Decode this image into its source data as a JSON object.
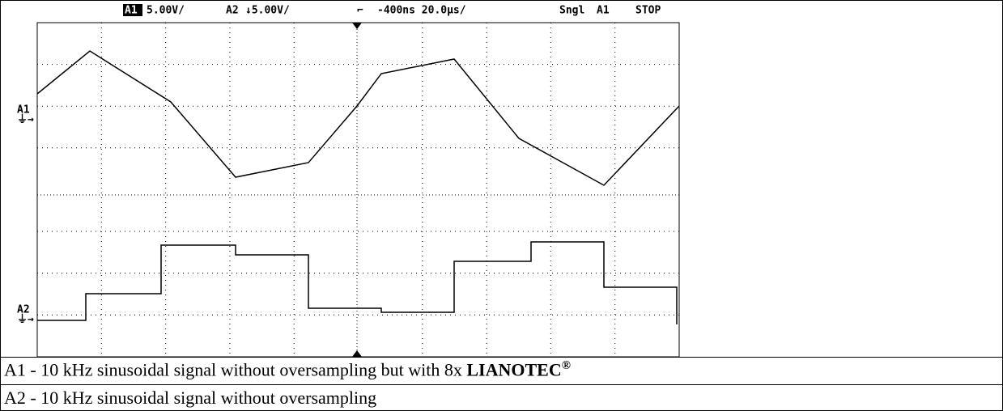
{
  "scope": {
    "header": {
      "ch1": "A1",
      "ch1_scale": "5.00V/",
      "ch2": "A2",
      "ch2_scale": "↓5.00V/",
      "trigger": "-400ns 20.0µs/",
      "mode": "Sngl",
      "trigger_source": "A1",
      "state": "STOP"
    },
    "channel_labels": [
      "A1",
      "A2"
    ]
  },
  "captions": [
    {
      "text": "A1 - 10 kHz sinusoidal signal without oversampling but with 8x ",
      "brand": "LIANOTEC",
      "mark": "®"
    },
    {
      "text": "A2 - 10 kHz sinusoidal signal without oversampling"
    }
  ]
}
